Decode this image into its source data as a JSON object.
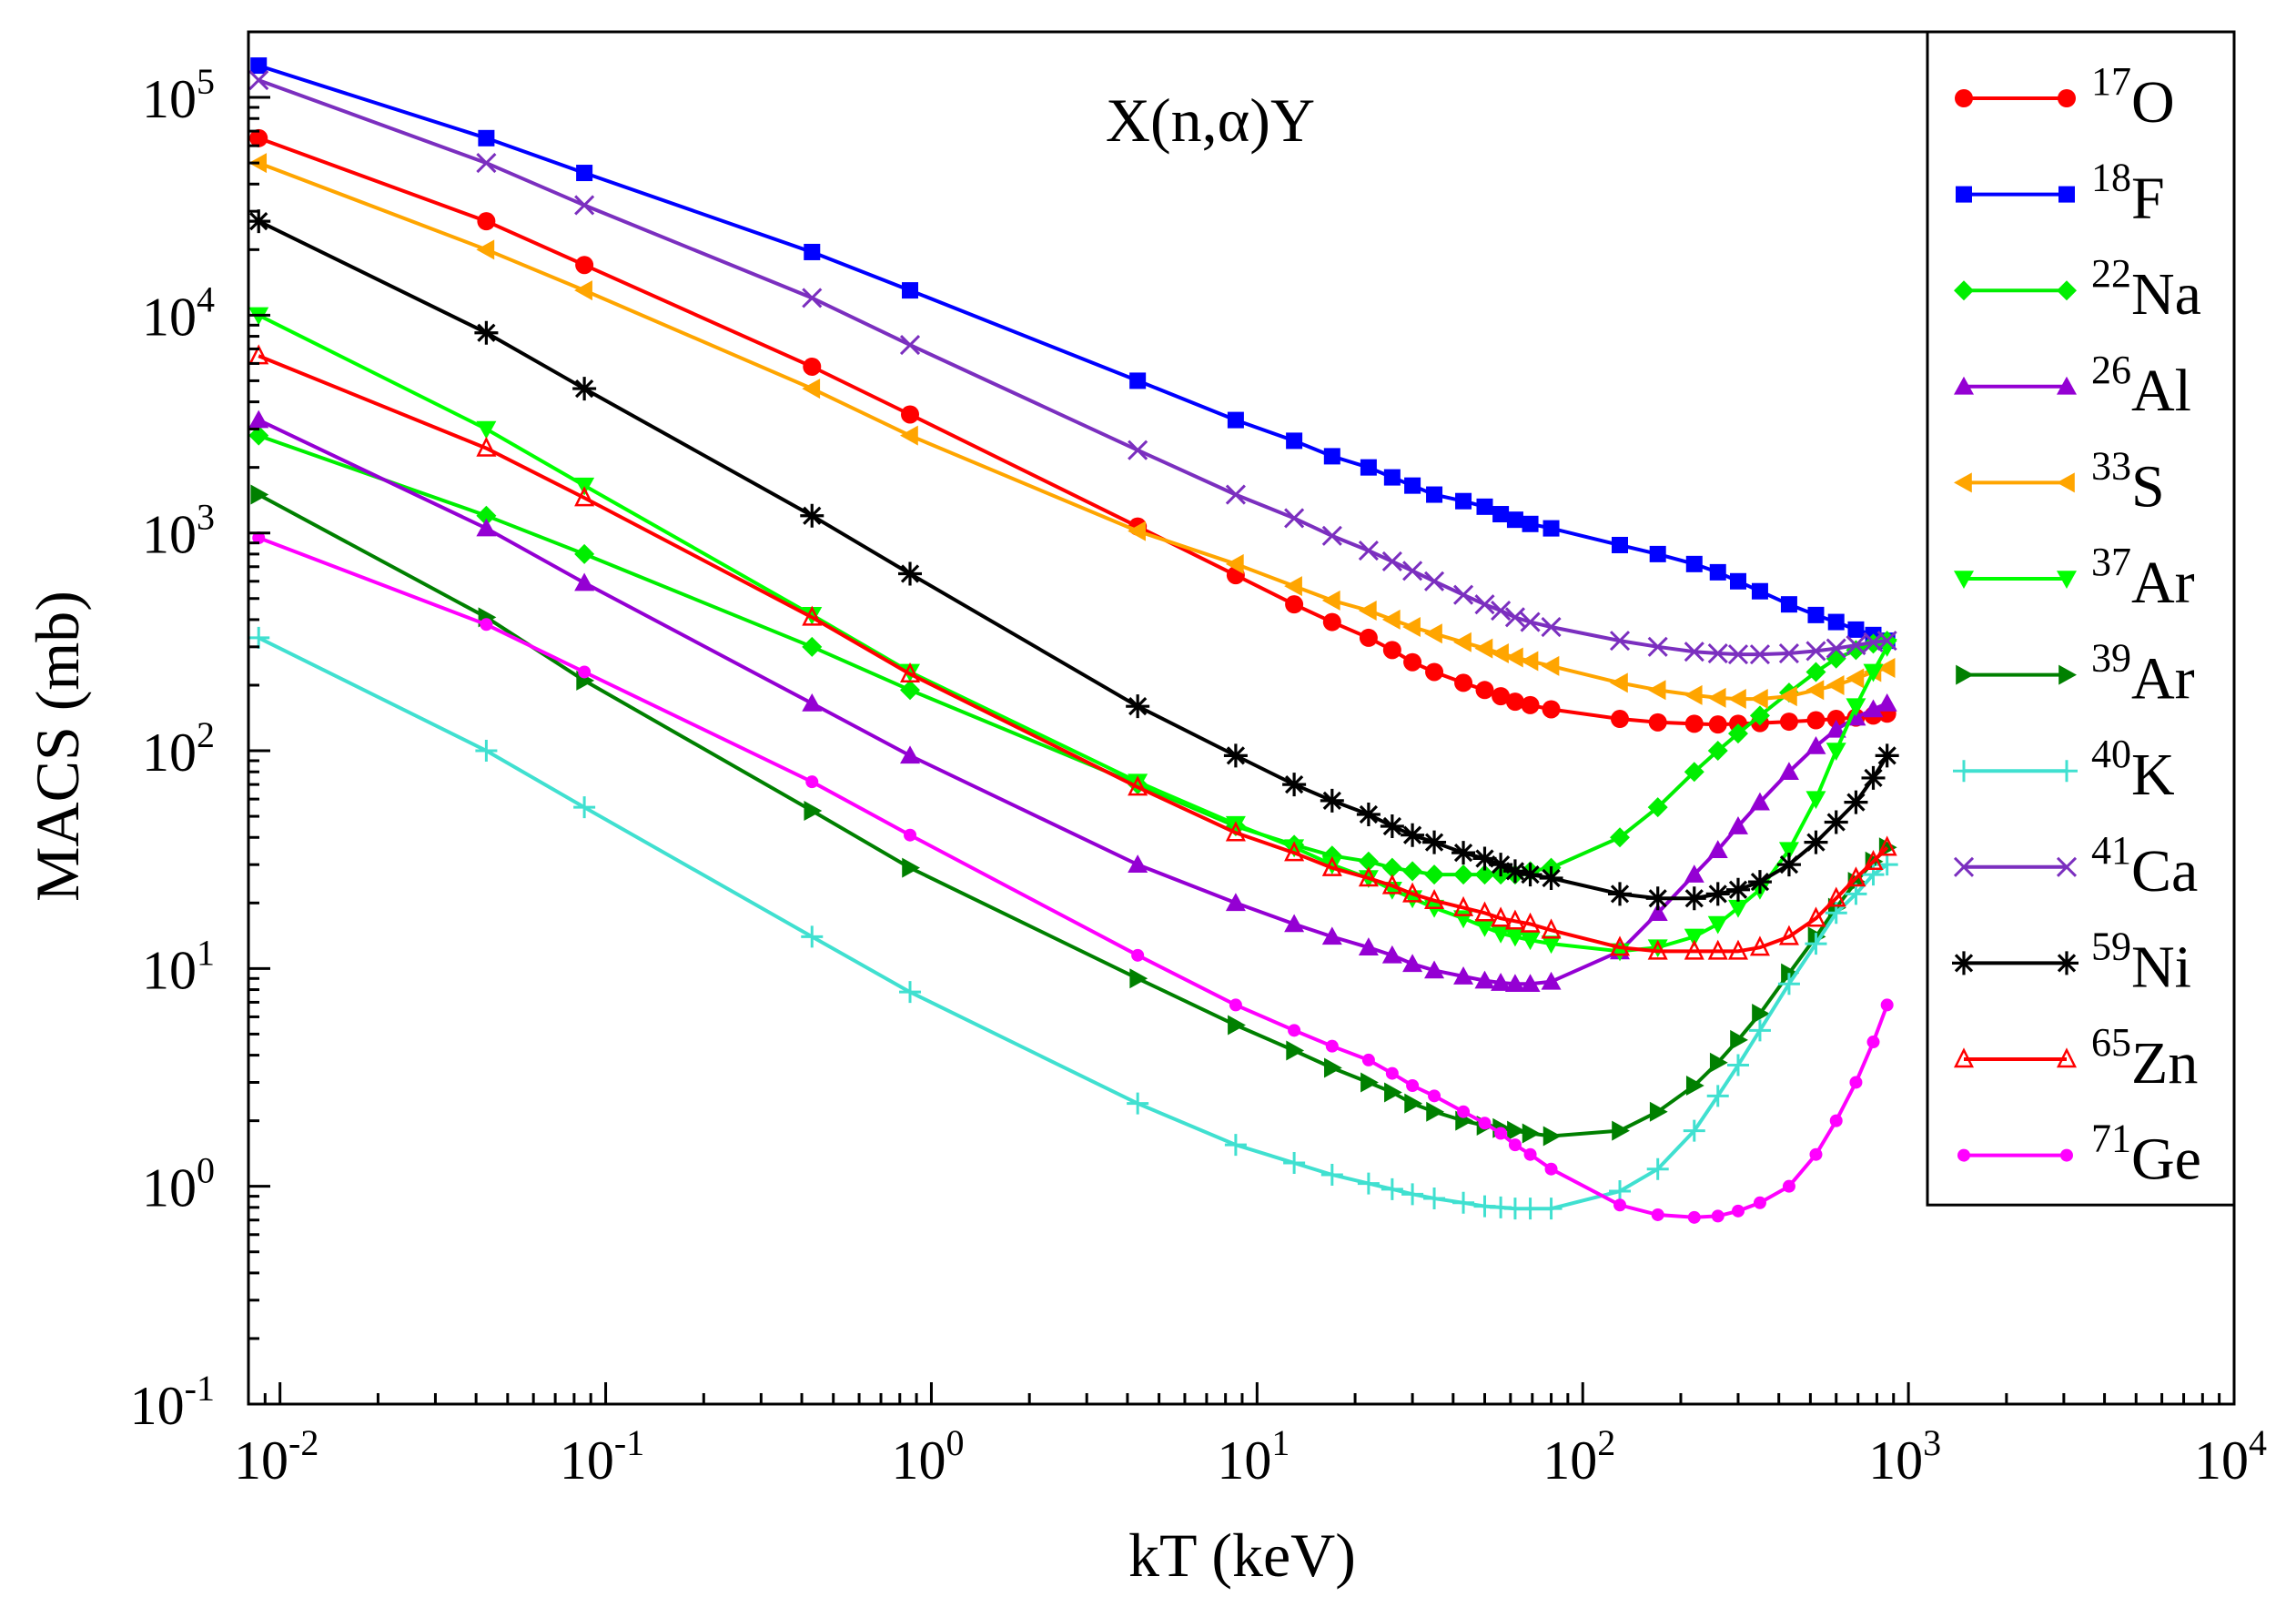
{
  "chart_data": {
    "type": "line",
    "title": "X(n,α)Y",
    "xlabel": "kT (keV)",
    "ylabel": "MACS (mb)",
    "xscale": "log",
    "yscale": "log",
    "xlim": [
      0.008,
      10000
    ],
    "ylim": [
      0.1,
      200000
    ],
    "grid": false,
    "legend_position": "top-right",
    "x_tick_labels": [
      {
        "value": 0.01,
        "base": "10",
        "exp": "-2"
      },
      {
        "value": 0.1,
        "base": "10",
        "exp": "-1"
      },
      {
        "value": 1,
        "base": "10",
        "exp": "0"
      },
      {
        "value": 10,
        "base": "10",
        "exp": "1"
      },
      {
        "value": 100,
        "base": "10",
        "exp": "2"
      },
      {
        "value": 1000,
        "base": "10",
        "exp": "3"
      },
      {
        "value": 10000,
        "base": "10",
        "exp": "4"
      }
    ],
    "y_tick_labels": [
      {
        "value": 0.1,
        "base": "10",
        "exp": "-1"
      },
      {
        "value": 1,
        "base": "10",
        "exp": "0"
      },
      {
        "value": 10,
        "base": "10",
        "exp": "1"
      },
      {
        "value": 100,
        "base": "10",
        "exp": "2"
      },
      {
        "value": 1000,
        "base": "10",
        "exp": "3"
      },
      {
        "value": 10000,
        "base": "10",
        "exp": "4"
      },
      {
        "value": 100000,
        "base": "10",
        "exp": "5"
      }
    ],
    "series": [
      {
        "name": "17O",
        "mass": "17",
        "element": "O",
        "color": "#ff0000",
        "marker": "circle",
        "x": [
          0.0086,
          0.043,
          0.086,
          0.43,
          0.86,
          4.3,
          8.6,
          13,
          17,
          22,
          26,
          30,
          35,
          43,
          50,
          56,
          62,
          69,
          80,
          130,
          170,
          220,
          260,
          300,
          350,
          430,
          520,
          600,
          690,
          780,
          860
        ],
        "y": [
          65000,
          27000,
          17000,
          5800,
          3500,
          1070,
          640,
          470,
          390,
          330,
          290,
          255,
          230,
          205,
          190,
          178,
          168,
          162,
          155,
          140,
          135,
          133,
          132,
          133,
          134,
          136,
          138,
          140,
          142,
          145,
          148
        ]
      },
      {
        "name": "18F",
        "mass": "18",
        "element": "F",
        "color": "#0000ff",
        "marker": "square",
        "x": [
          0.0086,
          0.043,
          0.086,
          0.43,
          0.86,
          4.3,
          8.6,
          13,
          17,
          22,
          26,
          30,
          35,
          43,
          50,
          56,
          62,
          69,
          80,
          130,
          170,
          220,
          260,
          300,
          350,
          430,
          520,
          600,
          690,
          780,
          860
        ],
        "y": [
          140000,
          65000,
          45000,
          19500,
          13000,
          5000,
          3300,
          2650,
          2250,
          2000,
          1800,
          1650,
          1500,
          1400,
          1320,
          1220,
          1150,
          1100,
          1050,
          880,
          800,
          720,
          660,
          600,
          540,
          470,
          420,
          390,
          360,
          340,
          320
        ]
      },
      {
        "name": "22Na",
        "mass": "22",
        "element": "Na",
        "color": "#00ee00",
        "marker": "diamond",
        "x": [
          0.0086,
          0.043,
          0.086,
          0.43,
          0.86,
          4.3,
          8.6,
          13,
          17,
          22,
          26,
          30,
          35,
          43,
          50,
          56,
          62,
          69,
          80,
          130,
          170,
          220,
          260,
          300,
          350,
          430,
          520,
          600,
          690,
          780,
          860
        ],
        "y": [
          2800,
          1200,
          800,
          300,
          190,
          70,
          45,
          37,
          33,
          31,
          29,
          28,
          27,
          27,
          27,
          27,
          27,
          28,
          29,
          40,
          55,
          80,
          100,
          120,
          145,
          185,
          230,
          265,
          290,
          310,
          320
        ]
      },
      {
        "name": "26Al",
        "mass": "26",
        "element": "Al",
        "color": "#9400d3",
        "marker": "triangle-up",
        "x": [
          0.0086,
          0.043,
          0.086,
          0.43,
          0.86,
          4.3,
          8.6,
          13,
          17,
          22,
          26,
          30,
          35,
          43,
          50,
          56,
          62,
          69,
          80,
          130,
          170,
          220,
          260,
          300,
          350,
          430,
          520,
          600,
          690,
          780,
          860
        ],
        "y": [
          3300,
          1050,
          590,
          165,
          95,
          30,
          20,
          16,
          14,
          12.5,
          11.5,
          10.5,
          9.8,
          9.2,
          8.8,
          8.6,
          8.5,
          8.5,
          8.7,
          12,
          18,
          27,
          35,
          45,
          58,
          80,
          105,
          125,
          142,
          155,
          165
        ]
      },
      {
        "name": "33S",
        "mass": "33",
        "element": "S",
        "color": "#ffa500",
        "marker": "triangle-left",
        "x": [
          0.0086,
          0.043,
          0.086,
          0.43,
          0.86,
          4.3,
          8.6,
          13,
          17,
          22,
          26,
          30,
          35,
          43,
          50,
          56,
          62,
          69,
          80,
          130,
          170,
          220,
          260,
          300,
          350,
          430,
          520,
          600,
          690,
          780,
          860
        ],
        "y": [
          50000,
          20000,
          13000,
          4600,
          2800,
          1020,
          720,
          570,
          490,
          440,
          400,
          370,
          345,
          315,
          295,
          280,
          268,
          258,
          245,
          205,
          190,
          180,
          175,
          173,
          173,
          178,
          190,
          200,
          215,
          230,
          240
        ]
      },
      {
        "name": "37Ar",
        "mass": "37",
        "element": "Ar",
        "color": "#00ff00",
        "marker": "triangle-down",
        "x": [
          0.0086,
          0.043,
          0.086,
          0.43,
          0.86,
          4.3,
          8.6,
          13,
          17,
          22,
          26,
          30,
          35,
          43,
          50,
          56,
          62,
          69,
          80,
          130,
          170,
          220,
          260,
          300,
          350,
          430,
          520,
          600,
          690,
          780,
          860
        ],
        "y": [
          10000,
          3000,
          1650,
          420,
          230,
          72,
          46,
          36,
          30,
          26,
          23,
          21,
          19,
          17,
          15.5,
          14.5,
          14,
          13.5,
          13,
          12,
          12.5,
          14,
          16,
          19,
          23,
          35,
          60,
          100,
          160,
          230,
          300
        ]
      },
      {
        "name": "39Ar",
        "mass": "39",
        "element": "Ar",
        "color": "#008000",
        "marker": "triangle-right",
        "x": [
          0.0086,
          0.043,
          0.086,
          0.43,
          0.86,
          4.3,
          8.6,
          13,
          17,
          22,
          26,
          30,
          35,
          43,
          50,
          56,
          62,
          69,
          80,
          130,
          170,
          220,
          260,
          300,
          350,
          430,
          520,
          600,
          690,
          780,
          860
        ],
        "y": [
          1500,
          410,
          210,
          53,
          29,
          9,
          5.5,
          4.2,
          3.5,
          3.0,
          2.7,
          2.4,
          2.2,
          2.0,
          1.9,
          1.85,
          1.8,
          1.75,
          1.7,
          1.8,
          2.2,
          2.9,
          3.7,
          4.7,
          6.2,
          9.5,
          14,
          19,
          25,
          31,
          36
        ]
      },
      {
        "name": "40K",
        "mass": "40",
        "element": "K",
        "color": "#40e0d0",
        "marker": "plus",
        "x": [
          0.0086,
          0.043,
          0.086,
          0.43,
          0.86,
          4.3,
          8.6,
          13,
          17,
          22,
          26,
          30,
          35,
          43,
          50,
          56,
          62,
          69,
          80,
          130,
          170,
          220,
          260,
          300,
          350,
          430,
          520,
          600,
          690,
          780,
          860
        ],
        "y": [
          330,
          100,
          55,
          14,
          7.8,
          2.4,
          1.55,
          1.28,
          1.13,
          1.03,
          0.97,
          0.92,
          0.88,
          0.84,
          0.81,
          0.8,
          0.79,
          0.79,
          0.79,
          0.95,
          1.2,
          1.8,
          2.6,
          3.6,
          5.2,
          8.5,
          13,
          18,
          22,
          27,
          30
        ]
      },
      {
        "name": "41Ca",
        "mass": "41",
        "element": "Ca",
        "color": "#7b2fbf",
        "marker": "x",
        "x": [
          0.0086,
          0.043,
          0.086,
          0.43,
          0.86,
          4.3,
          8.6,
          13,
          17,
          22,
          26,
          30,
          35,
          43,
          50,
          56,
          62,
          69,
          80,
          130,
          170,
          220,
          260,
          300,
          350,
          430,
          520,
          600,
          690,
          780,
          860
        ],
        "y": [
          120000,
          50000,
          32000,
          12000,
          7300,
          2400,
          1500,
          1170,
          970,
          830,
          740,
          670,
          600,
          520,
          470,
          440,
          410,
          390,
          370,
          320,
          300,
          285,
          280,
          277,
          277,
          280,
          287,
          295,
          305,
          315,
          320
        ]
      },
      {
        "name": "59Ni",
        "mass": "59",
        "element": "Ni",
        "color": "#000000",
        "marker": "asterisk",
        "x": [
          0.0086,
          0.043,
          0.086,
          0.43,
          0.86,
          4.3,
          8.6,
          13,
          17,
          22,
          26,
          30,
          35,
          43,
          50,
          56,
          62,
          69,
          80,
          130,
          170,
          220,
          260,
          300,
          350,
          430,
          520,
          600,
          690,
          780,
          860
        ],
        "y": [
          27000,
          8300,
          4600,
          1200,
          650,
          160,
          95,
          70,
          59,
          51,
          45,
          41,
          38,
          34,
          32,
          30,
          28,
          27,
          26,
          22,
          21,
          21,
          22,
          23,
          25,
          30,
          38,
          47,
          58,
          75,
          95
        ]
      },
      {
        "name": "65Zn",
        "mass": "65",
        "element": "Zn",
        "color": "#ff0000",
        "marker": "open-triangle",
        "x": [
          0.0086,
          0.043,
          0.086,
          0.43,
          0.86,
          4.3,
          8.6,
          13,
          17,
          22,
          26,
          30,
          35,
          43,
          50,
          56,
          62,
          69,
          80,
          130,
          170,
          220,
          260,
          300,
          350,
          430,
          520,
          600,
          690,
          780,
          860
        ],
        "y": [
          6500,
          2450,
          1450,
          410,
          225,
          68,
          42,
          34,
          29,
          26,
          24,
          22,
          20.5,
          19,
          18,
          17,
          16.5,
          16,
          15,
          12.5,
          12,
          12,
          12,
          12,
          12.5,
          14,
          17,
          21,
          26,
          31,
          36
        ]
      },
      {
        "name": "71Ge",
        "mass": "71",
        "element": "Ge",
        "color": "#ff00ff",
        "marker": "small-circle",
        "x": [
          0.0086,
          0.043,
          0.086,
          0.43,
          0.86,
          4.3,
          8.6,
          13,
          17,
          22,
          26,
          30,
          35,
          43,
          50,
          56,
          62,
          69,
          80,
          130,
          170,
          220,
          260,
          300,
          350,
          430,
          520,
          600,
          690,
          780,
          860
        ],
        "y": [
          950,
          380,
          230,
          72,
          41,
          11.5,
          6.8,
          5.2,
          4.4,
          3.8,
          3.3,
          2.9,
          2.6,
          2.2,
          1.95,
          1.75,
          1.55,
          1.4,
          1.2,
          0.82,
          0.74,
          0.72,
          0.73,
          0.77,
          0.84,
          1.0,
          1.4,
          2.0,
          3.0,
          4.6,
          6.8
        ]
      }
    ]
  }
}
